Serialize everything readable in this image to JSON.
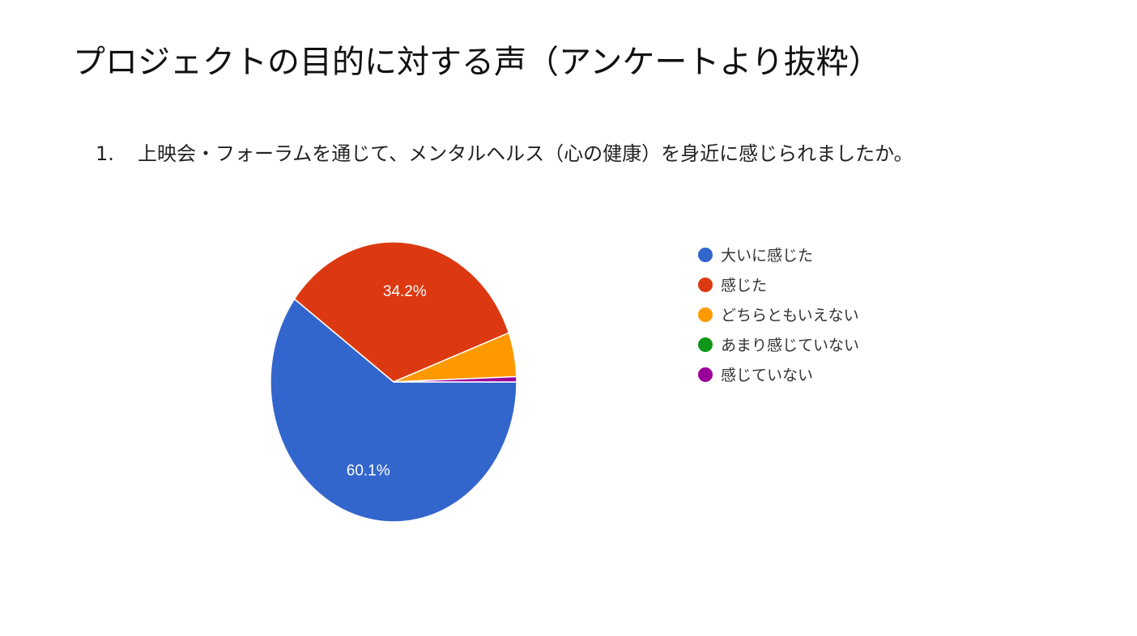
{
  "title": "プロジェクトの目的に対する声（アンケートより抜粋）",
  "question": {
    "number": "1.",
    "text": "上映会・フォーラムを通じて、メンタルヘルス（心の健康）を身近に感じられましたか。"
  },
  "chart_data": {
    "type": "pie",
    "categories": [
      "大いに感じた",
      "感じた",
      "どちらともいえない",
      "あまり感じていない",
      "感じていない"
    ],
    "values": [
      60.1,
      34.2,
      5.1,
      0.0,
      0.6
    ],
    "labels": [
      "60.1%",
      "34.2%",
      "",
      "",
      ""
    ],
    "colors": [
      "#3366cc",
      "#dc3912",
      "#ff9900",
      "#109618",
      "#990099"
    ],
    "legend": "right"
  }
}
